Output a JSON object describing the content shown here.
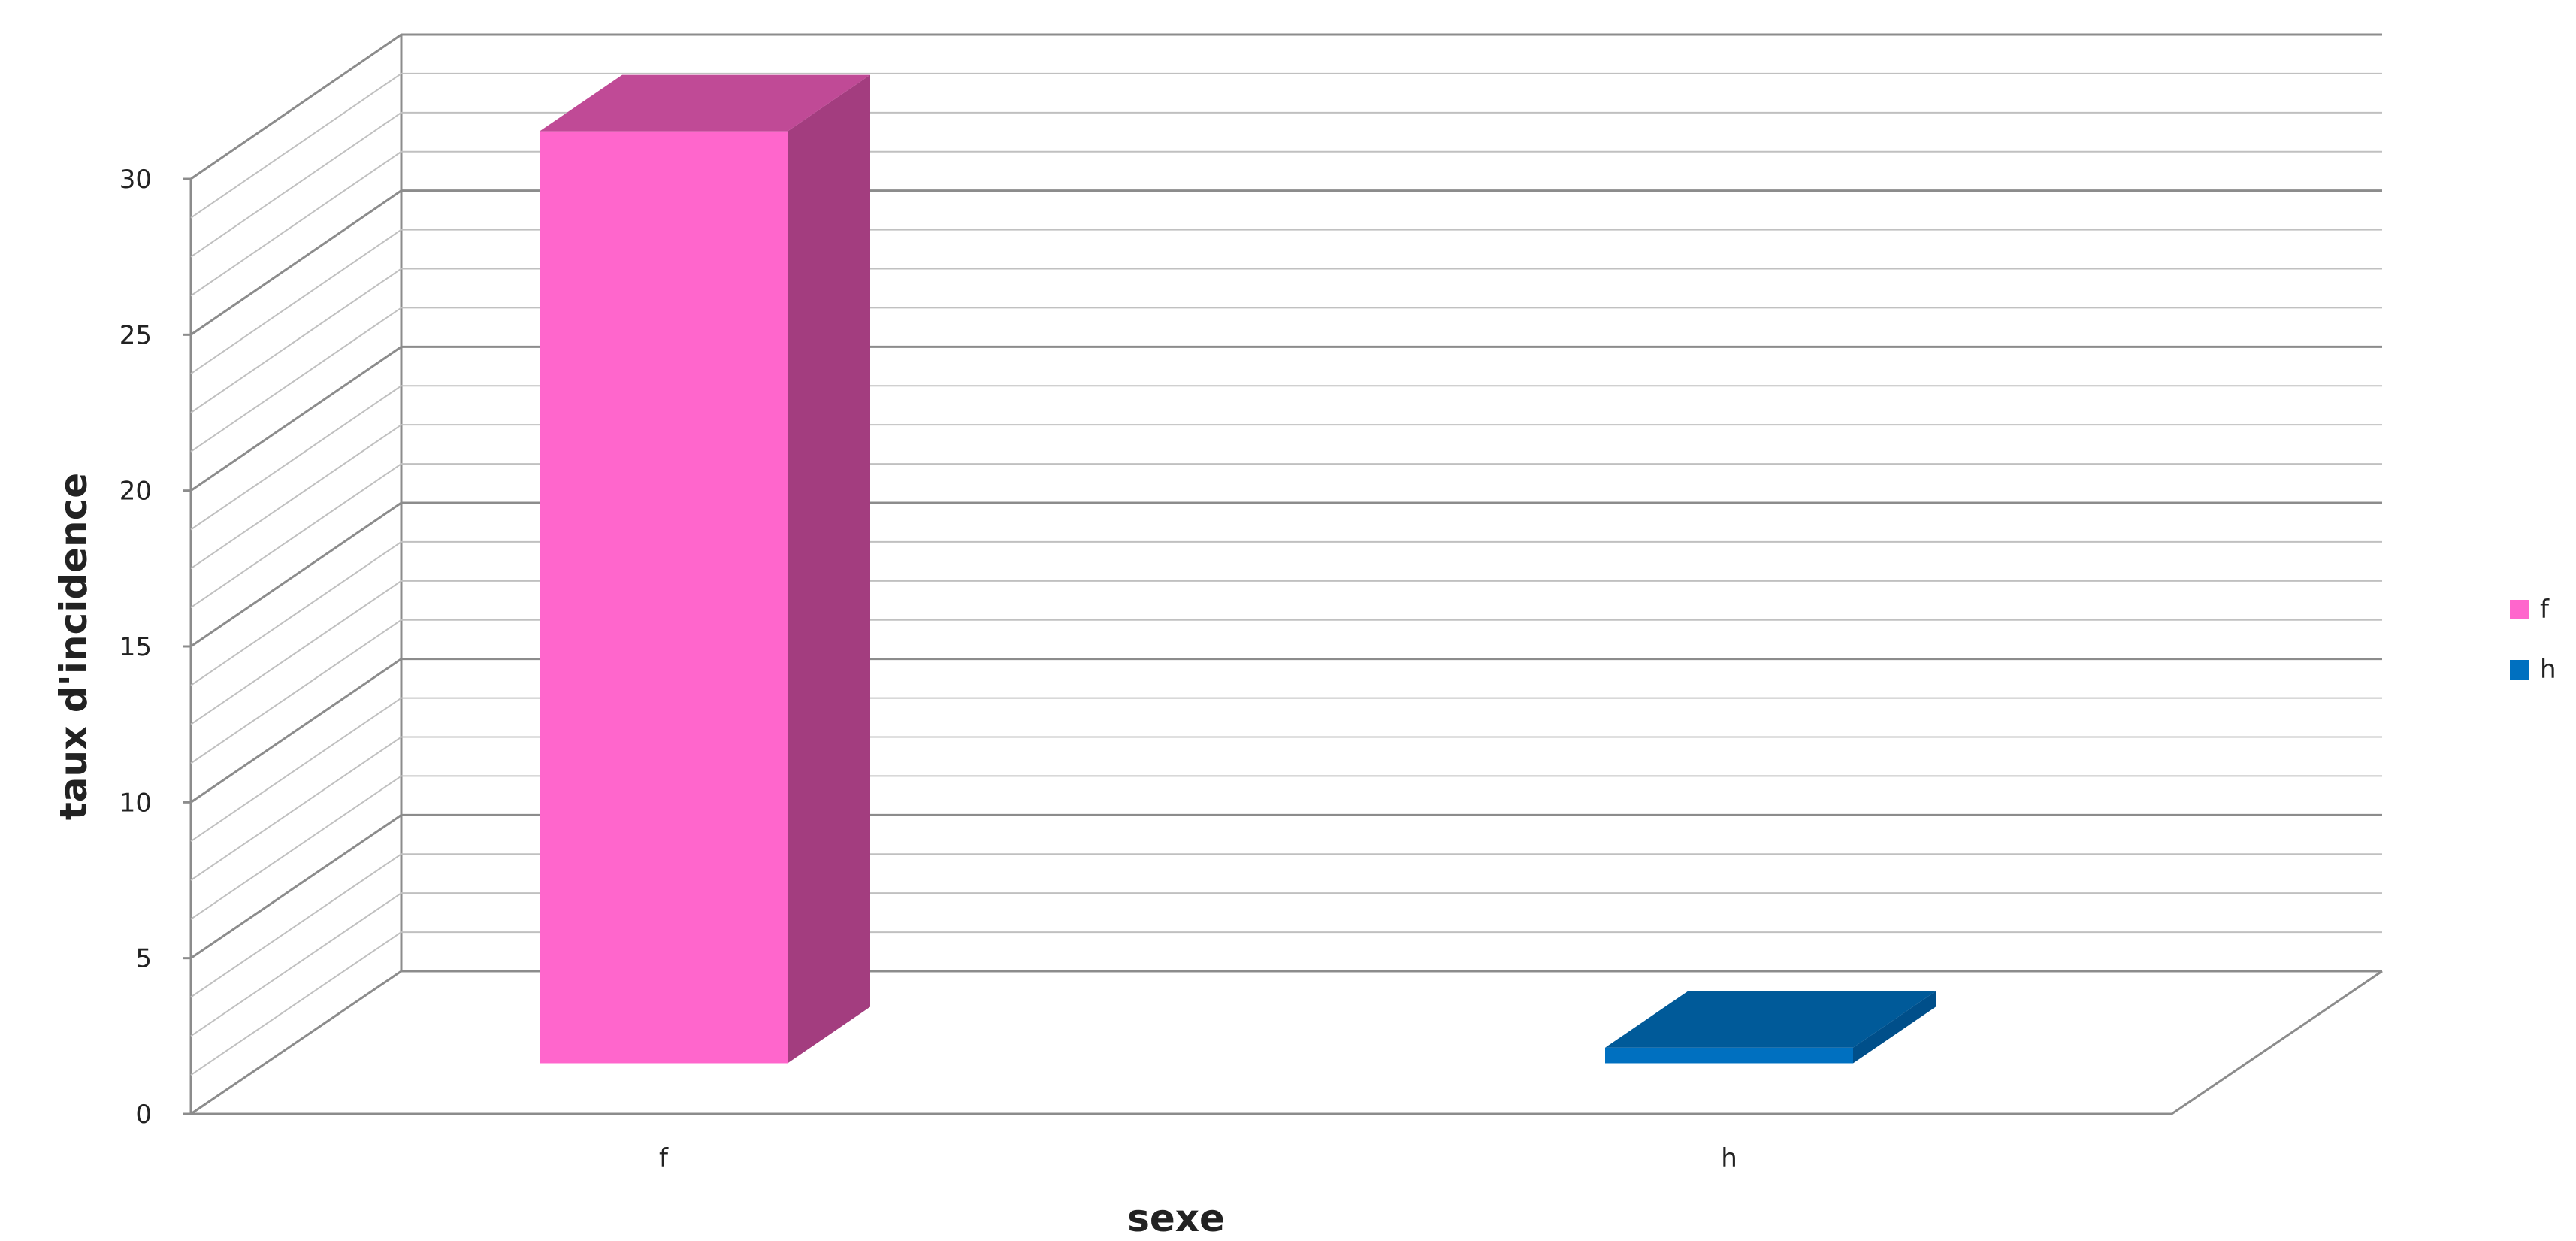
{
  "chart_data": {
    "type": "bar",
    "categories": [
      "f",
      "h"
    ],
    "series": [
      {
        "name": "f",
        "category": "f",
        "value": 29.9,
        "color": "#ff66cc",
        "side_color": "#a33d7f",
        "top_color": "#c04a96"
      },
      {
        "name": "h",
        "category": "h",
        "value": 0.5,
        "color": "#0070c0",
        "side_color": "#004f8a",
        "top_color": "#005a99"
      }
    ],
    "xlabel": "sexe",
    "ylabel": "taux d'incidence",
    "ylim": [
      0,
      30
    ],
    "yticks": [
      0,
      5,
      10,
      15,
      20,
      25,
      30
    ],
    "minor_gridlines_per_major": 4,
    "grid": true,
    "three_d": true,
    "legend": {
      "placement": "right",
      "entries": [
        "f",
        "h"
      ]
    }
  }
}
